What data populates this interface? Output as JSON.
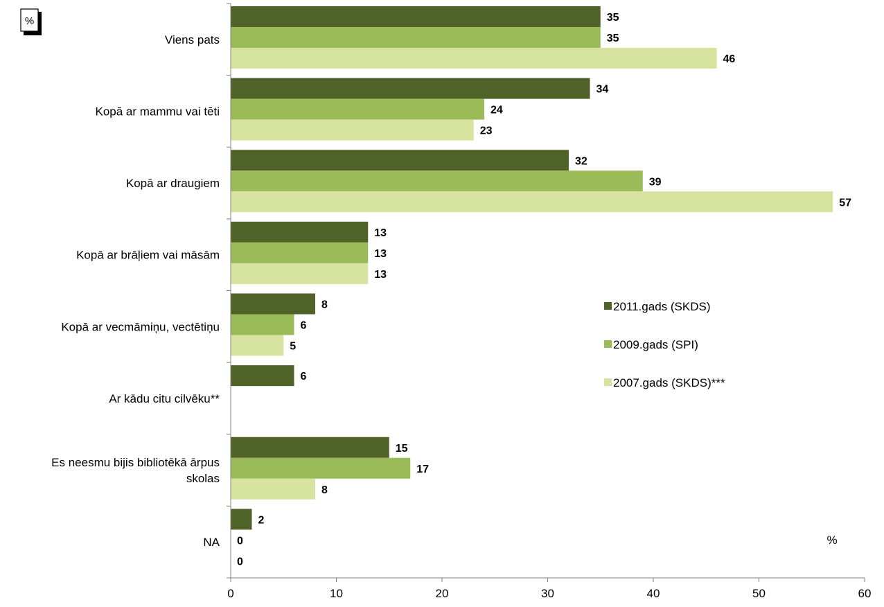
{
  "unit_badge": "%",
  "chart_data": {
    "type": "bar",
    "orientation": "horizontal",
    "categories": [
      [
        "Viens pats"
      ],
      [
        "Kopā ar mammu vai tēti"
      ],
      [
        "Kopā ar draugiem"
      ],
      [
        "Kopā ar brāļiem vai māsām"
      ],
      [
        "Kopā ar vecmāmiņu, vectētiņu"
      ],
      [
        "Ar kādu citu cilvēku**"
      ],
      [
        "Es neesmu bijis bibliotēkā ārpus",
        "skolas"
      ],
      [
        "NA"
      ]
    ],
    "series": [
      {
        "name": "2011.gads (SKDS)",
        "color": "#4f6228",
        "values": [
          35,
          34,
          32,
          13,
          8,
          6,
          15,
          2
        ]
      },
      {
        "name": "2009.gads (SPI)",
        "color": "#9bbb59",
        "values": [
          35,
          24,
          39,
          13,
          6,
          null,
          17,
          0
        ]
      },
      {
        "name": "2007.gads (SKDS)***",
        "color": "#d7e4a0",
        "values": [
          46,
          23,
          57,
          13,
          5,
          null,
          8,
          0
        ]
      }
    ],
    "value_labels": [
      [
        "35",
        "35",
        "46"
      ],
      [
        "34",
        "24",
        "23"
      ],
      [
        "32",
        "39",
        "57"
      ],
      [
        "13",
        "13",
        "13"
      ],
      [
        "8",
        "6",
        "5"
      ],
      [
        "6",
        "",
        ""
      ],
      [
        "15",
        "17",
        "8"
      ],
      [
        "2",
        "0",
        "0"
      ]
    ],
    "xlim": [
      0,
      60
    ],
    "xticks": [
      0,
      10,
      20,
      30,
      40,
      50,
      60
    ],
    "xtick_labels": [
      "0",
      "10",
      "20",
      "30",
      "40",
      "50",
      "60"
    ],
    "xlabel": "%",
    "grid": false,
    "legend_position": "right"
  }
}
